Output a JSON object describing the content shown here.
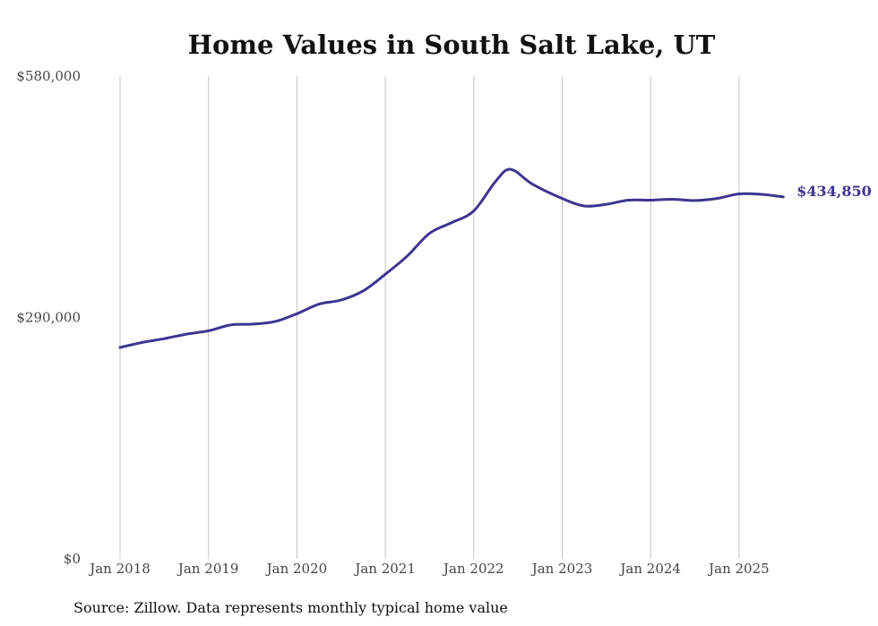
{
  "chart_data": {
    "type": "line",
    "title": "Home Values in South Salt Lake, UT",
    "source": "Source: Zillow. Data represents monthly typical home value",
    "ylim": [
      0,
      580000
    ],
    "y_ticks": [
      {
        "value": 0,
        "label": "$0"
      },
      {
        "value": 290000,
        "label": "$290,000"
      },
      {
        "value": 580000,
        "label": "$580,000"
      }
    ],
    "x_ticks": [
      {
        "value": "2018-01",
        "label": "Jan 2018"
      },
      {
        "value": "2019-01",
        "label": "Jan 2019"
      },
      {
        "value": "2020-01",
        "label": "Jan 2020"
      },
      {
        "value": "2021-01",
        "label": "Jan 2021"
      },
      {
        "value": "2022-01",
        "label": "Jan 2022"
      },
      {
        "value": "2023-01",
        "label": "Jan 2023"
      },
      {
        "value": "2024-01",
        "label": "Jan 2024"
      },
      {
        "value": "2025-01",
        "label": "Jan 2025"
      }
    ],
    "grid": "vertical",
    "end_label": "$434,850",
    "line_color": "#3d3590",
    "series": [
      {
        "points": [
          {
            "x": "2018-01",
            "y": 254000
          },
          {
            "x": "2018-04",
            "y": 260000
          },
          {
            "x": "2018-07",
            "y": 264500
          },
          {
            "x": "2018-10",
            "y": 270000
          },
          {
            "x": "2019-01",
            "y": 274000
          },
          {
            "x": "2019-04",
            "y": 281000
          },
          {
            "x": "2019-07",
            "y": 282000
          },
          {
            "x": "2019-10",
            "y": 285000
          },
          {
            "x": "2020-01",
            "y": 294500
          },
          {
            "x": "2020-04",
            "y": 306000
          },
          {
            "x": "2020-07",
            "y": 311000
          },
          {
            "x": "2020-10",
            "y": 322000
          },
          {
            "x": "2021-01",
            "y": 342000
          },
          {
            "x": "2021-04",
            "y": 364000
          },
          {
            "x": "2021-07",
            "y": 391000
          },
          {
            "x": "2021-10",
            "y": 404000
          },
          {
            "x": "2022-01",
            "y": 418000
          },
          {
            "x": "2022-04",
            "y": 454000
          },
          {
            "x": "2022-06",
            "y": 468000
          },
          {
            "x": "2022-09",
            "y": 450000
          },
          {
            "x": "2023-01",
            "y": 433000
          },
          {
            "x": "2023-04",
            "y": 424000
          },
          {
            "x": "2023-07",
            "y": 426000
          },
          {
            "x": "2023-10",
            "y": 431000
          },
          {
            "x": "2024-01",
            "y": 431000
          },
          {
            "x": "2024-04",
            "y": 432000
          },
          {
            "x": "2024-07",
            "y": 430500
          },
          {
            "x": "2024-10",
            "y": 433000
          },
          {
            "x": "2025-01",
            "y": 438500
          },
          {
            "x": "2025-04",
            "y": 438000
          },
          {
            "x": "2025-07",
            "y": 434850
          }
        ]
      }
    ]
  }
}
